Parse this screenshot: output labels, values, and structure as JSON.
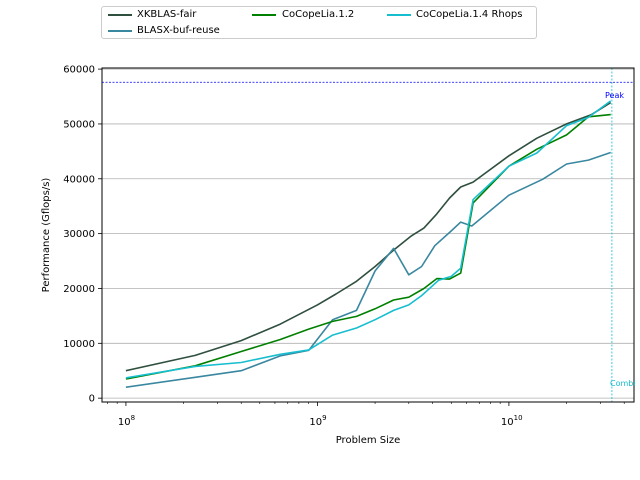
{
  "chart_data": {
    "type": "line",
    "xlabel": "Problem Size",
    "ylabel": "Performance (Gflops/s)",
    "x_scale": "log",
    "xlim": [
      75000000,
      45000000000
    ],
    "ylim": [
      -700,
      60200
    ],
    "x_ticks": [
      {
        "value": 100000000,
        "label_base": "10",
        "label_exp": "8"
      },
      {
        "value": 1000000000,
        "label_base": "10",
        "label_exp": "9"
      },
      {
        "value": 10000000000,
        "label_base": "10",
        "label_exp": "10"
      }
    ],
    "y_ticks": [
      0,
      10000,
      20000,
      30000,
      40000,
      50000,
      60000
    ],
    "grid": "horizontal",
    "legend_position": "top",
    "series": [
      {
        "name": "XKBLAS-fair",
        "color": "#2f4f3f",
        "x": [
          100000000,
          230000000,
          400000000,
          640000000,
          1000000000,
          1250000000,
          1600000000,
          2000000000,
          2500000000,
          3100000000,
          3600000000,
          4200000000,
          4900000000,
          5600000000,
          6500000000,
          10000000000,
          14000000000,
          20000000000,
          27000000000,
          34000000000
        ],
        "y": [
          5000,
          7800,
          10500,
          13500,
          17000,
          19000,
          21300,
          24000,
          27000,
          29600,
          31000,
          33600,
          36500,
          38500,
          39400,
          44200,
          47400,
          50000,
          51700,
          53900
        ]
      },
      {
        "name": "BLASX-buf-reuse",
        "color": "#3a87a0",
        "x": [
          100000000,
          230000000,
          400000000,
          640000000,
          900000000,
          1200000000,
          1600000000,
          2000000000,
          2500000000,
          3000000000,
          3500000000,
          4100000000,
          5000000000,
          5600000000,
          6400000000,
          10000000000,
          15000000000,
          20000000000,
          26000000000,
          34000000000
        ],
        "y": [
          2000,
          3800,
          5000,
          7700,
          8700,
          14300,
          16000,
          23200,
          27300,
          22500,
          24000,
          27800,
          30500,
          32100,
          31400,
          37000,
          39900,
          42700,
          43400,
          44800
        ]
      },
      {
        "name": "CoCopeLia.1.2",
        "color": "#008000",
        "x": [
          100000000,
          230000000,
          400000000,
          640000000,
          900000000,
          1200000000,
          1600000000,
          2000000000,
          2500000000,
          3000000000,
          3600000000,
          4200000000,
          4900000000,
          5600000000,
          6500000000,
          10000000000,
          14000000000,
          20000000000,
          26000000000,
          34000000000
        ],
        "y": [
          3500,
          5900,
          8500,
          10700,
          12600,
          14000,
          14900,
          16300,
          17900,
          18400,
          20000,
          21800,
          21700,
          22800,
          35600,
          42300,
          45400,
          48000,
          51300,
          51700
        ]
      },
      {
        "name": "CoCopeLia.1.4 Rhops",
        "color": "#17becf",
        "x": [
          100000000,
          230000000,
          400000000,
          640000000,
          900000000,
          1200000000,
          1600000000,
          2000000000,
          2500000000,
          3000000000,
          3500000000,
          4300000000,
          5000000000,
          5600000000,
          6500000000,
          10000000000,
          14000000000,
          20000000000,
          26000000000,
          34000000000
        ],
        "y": [
          3700,
          5800,
          6500,
          8000,
          8800,
          11500,
          12800,
          14300,
          16000,
          17000,
          18700,
          21500,
          22200,
          23700,
          36200,
          42300,
          44700,
          49700,
          51200,
          54200
        ]
      }
    ],
    "reference_lines": [
      {
        "orientation": "horizontal",
        "value": 57600,
        "color": "#0000ff",
        "label": "Peak"
      },
      {
        "orientation": "vertical",
        "value": 34500000000,
        "color": "#17becf",
        "label": "Combi"
      }
    ]
  }
}
